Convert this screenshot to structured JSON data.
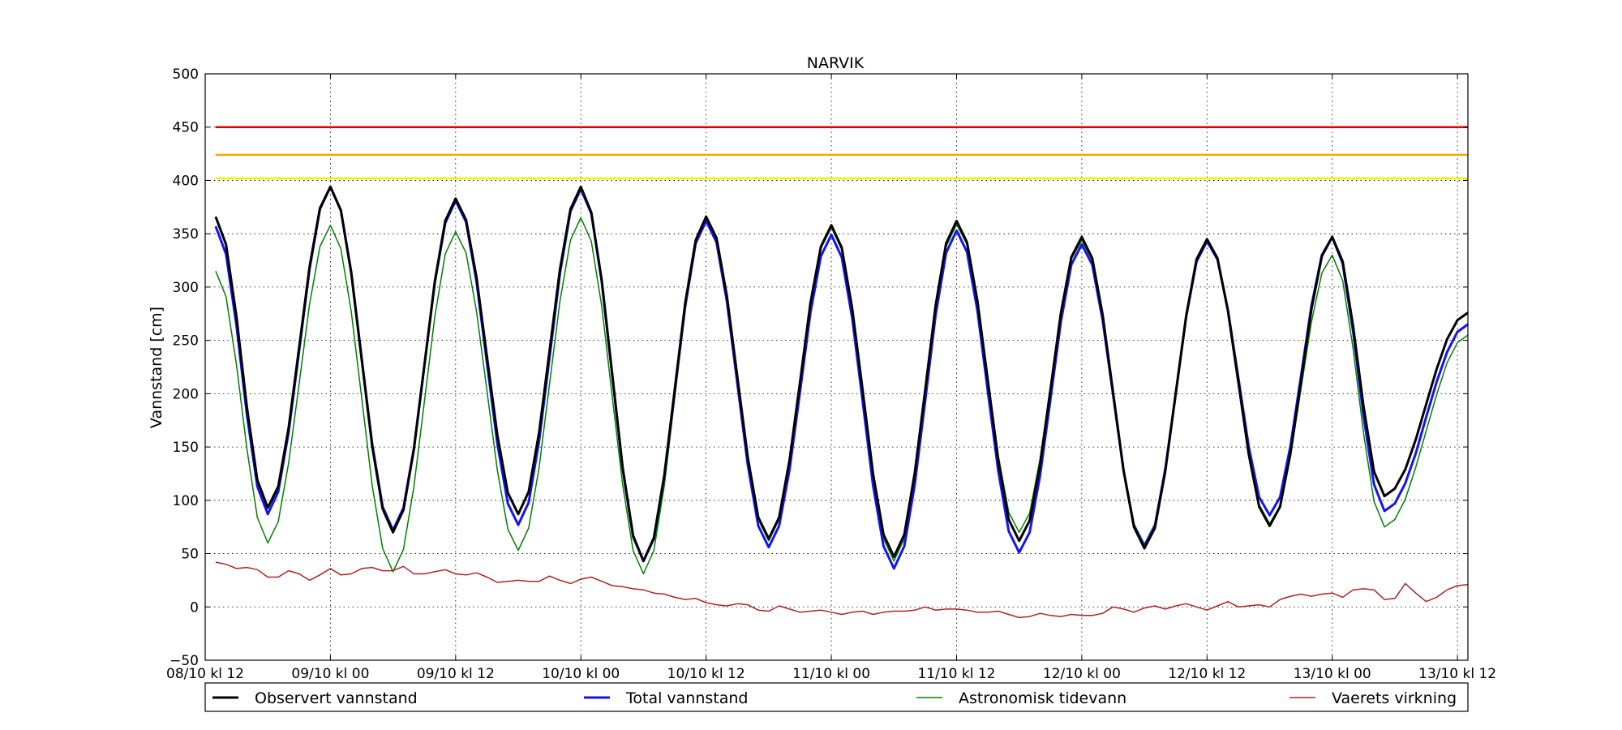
{
  "chart_data": {
    "type": "line",
    "title": "NARVIK",
    "ylabel": "Vannstand [cm]",
    "xlabel": "",
    "ylim": [
      -50,
      500
    ],
    "yticks": [
      -50,
      0,
      50,
      100,
      150,
      200,
      250,
      300,
      350,
      400,
      450,
      500
    ],
    "xlim": [
      0,
      121
    ],
    "x_unit": "hours since 08/10 kl 12",
    "xticks": [
      {
        "x": 0,
        "label": "08/10 kl 12"
      },
      {
        "x": 12,
        "label": "09/10 kl 00"
      },
      {
        "x": 24,
        "label": "09/10 kl 12"
      },
      {
        "x": 36,
        "label": "10/10 kl 00"
      },
      {
        "x": 48,
        "label": "10/10 kl 12"
      },
      {
        "x": 60,
        "label": "11/10 kl 00"
      },
      {
        "x": 72,
        "label": "11/10 kl 12"
      },
      {
        "x": 84,
        "label": "12/10 kl 00"
      },
      {
        "x": 96,
        "label": "12/10 kl 12"
      },
      {
        "x": 108,
        "label": "13/10 kl 00"
      },
      {
        "x": 120,
        "label": "13/10 kl 12"
      }
    ],
    "grid": true,
    "legend_position": "below",
    "reference_lines": [
      {
        "y": 450,
        "color": "#e00000"
      },
      {
        "y": 424,
        "color": "#ffa500"
      },
      {
        "y": 402,
        "color": "#f2f200"
      }
    ],
    "series": [
      {
        "name": "Observert vannstand",
        "color": "#000000",
        "width": 3,
        "x_start": 1,
        "x_step": 1,
        "x_end": 121,
        "anchors": [
          [
            1,
            366
          ],
          [
            6,
            93
          ],
          [
            12,
            394
          ],
          [
            18,
            70
          ],
          [
            24,
            383
          ],
          [
            30,
            87
          ],
          [
            36,
            394
          ],
          [
            42,
            43
          ],
          [
            48,
            366
          ],
          [
            54,
            64
          ],
          [
            60,
            358
          ],
          [
            66,
            47
          ],
          [
            72,
            362
          ],
          [
            78,
            62
          ],
          [
            84,
            347
          ],
          [
            90,
            55
          ],
          [
            96,
            345
          ],
          [
            102,
            76
          ],
          [
            108,
            347
          ],
          [
            113,
            104
          ],
          [
            121,
            276
          ]
        ]
      },
      {
        "name": "Total vannstand",
        "color": "#1414f0",
        "width": 3,
        "x_start": 1,
        "x_step": 1,
        "x_end": 121,
        "anchors": [
          [
            1,
            357
          ],
          [
            6,
            87
          ],
          [
            12,
            394
          ],
          [
            18,
            72
          ],
          [
            24,
            381
          ],
          [
            30,
            77
          ],
          [
            36,
            392
          ],
          [
            42,
            43
          ],
          [
            48,
            362
          ],
          [
            54,
            56
          ],
          [
            60,
            349
          ],
          [
            66,
            36
          ],
          [
            72,
            353
          ],
          [
            78,
            51
          ],
          [
            84,
            340
          ],
          [
            90,
            57
          ],
          [
            96,
            343
          ],
          [
            102,
            86
          ],
          [
            108,
            347
          ],
          [
            113,
            90
          ],
          [
            121,
            265
          ]
        ]
      },
      {
        "name": "Astronomisk tidevann",
        "color": "#008000",
        "width": 1.5,
        "x_start": 1,
        "x_step": 1,
        "x_end": 121,
        "anchors": [
          [
            1,
            315
          ],
          [
            6,
            60
          ],
          [
            12,
            358
          ],
          [
            18,
            33
          ],
          [
            24,
            352
          ],
          [
            30,
            53
          ],
          [
            36,
            365
          ],
          [
            42,
            31
          ],
          [
            48,
            362
          ],
          [
            54,
            62
          ],
          [
            60,
            356
          ],
          [
            66,
            43
          ],
          [
            72,
            359
          ],
          [
            78,
            70
          ],
          [
            84,
            344
          ],
          [
            90,
            59
          ],
          [
            96,
            343
          ],
          [
            102,
            78
          ],
          [
            108,
            330
          ],
          [
            113,
            75
          ],
          [
            121,
            255
          ]
        ]
      },
      {
        "name": "Vaerets virkning",
        "color": "#b22222",
        "width": 1.5,
        "x_start": 1,
        "x_step": 1,
        "x_end": 121,
        "values": [
          42,
          40,
          36,
          37,
          35,
          28,
          28,
          34,
          31,
          25,
          30,
          36,
          30,
          31,
          36,
          37,
          34,
          34,
          38,
          31,
          31,
          33,
          35,
          31,
          30,
          32,
          28,
          23,
          24,
          25,
          24,
          24,
          29,
          25,
          22,
          26,
          28,
          24,
          20,
          19,
          17,
          16,
          13,
          12,
          9,
          7,
          8,
          4,
          2,
          1,
          3,
          2,
          -3,
          -4,
          1,
          -2,
          -5,
          -4,
          -3,
          -5,
          -7,
          -5,
          -4,
          -7,
          -5,
          -4,
          -4,
          -3,
          0,
          -3,
          -2,
          -2,
          -3,
          -5,
          -5,
          -4,
          -7,
          -10,
          -9,
          -6,
          -8,
          -9,
          -7,
          -8,
          -8,
          -6,
          0,
          -2,
          -5,
          -1,
          1,
          -2,
          1,
          3,
          0,
          -3,
          1,
          5,
          0,
          1,
          2,
          0,
          7,
          10,
          12,
          10,
          12,
          13,
          9,
          16,
          17,
          16,
          7,
          8,
          22,
          13,
          5,
          9,
          16,
          20,
          21
        ]
      }
    ]
  }
}
